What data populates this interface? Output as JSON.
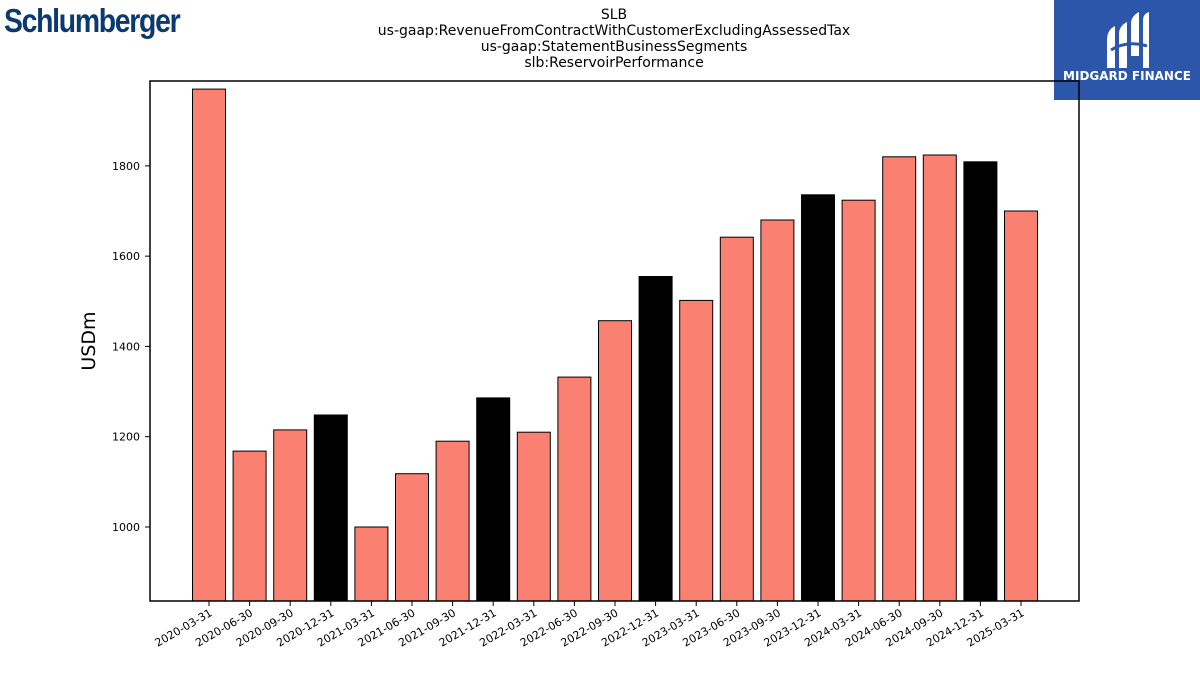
{
  "logos": {
    "company": "Schlumberger",
    "brand": "MIDGARD FINANCE"
  },
  "colors": {
    "quarter_bar": "#fa8072",
    "year_end_bar": "#000000",
    "brand_background": "#2b56a9",
    "company_logo": "#0b3a6e"
  },
  "chart_data": {
    "type": "bar",
    "title_lines": [
      "SLB",
      "us-gaap:RevenueFromContractWithCustomerExcludingAssessedTax",
      "us-gaap:StatementBusinessSegments",
      "slb:ReservoirPerformance"
    ],
    "xlabel": "",
    "ylabel": "USDm",
    "ylim": [
      836,
      1988
    ],
    "yticks": [
      1000,
      1200,
      1400,
      1600,
      1800
    ],
    "grid": false,
    "legend": false,
    "categories": [
      "2020-03-31",
      "2020-06-30",
      "2020-09-30",
      "2020-12-31",
      "2021-03-31",
      "2021-06-30",
      "2021-09-30",
      "2021-12-31",
      "2022-03-31",
      "2022-06-30",
      "2022-09-30",
      "2022-12-31",
      "2023-03-31",
      "2023-06-30",
      "2023-09-30",
      "2023-12-31",
      "2024-03-31",
      "2024-06-30",
      "2024-09-30",
      "2024-12-31",
      "2025-03-31"
    ],
    "values": [
      1970,
      1168,
      1215,
      1248,
      1000,
      1118,
      1190,
      1286,
      1210,
      1332,
      1457,
      1555,
      1502,
      1642,
      1680,
      1736,
      1724,
      1820,
      1824,
      1809,
      1700
    ],
    "year_end": [
      false,
      false,
      false,
      true,
      false,
      false,
      false,
      true,
      false,
      false,
      false,
      true,
      false,
      false,
      false,
      true,
      false,
      false,
      false,
      true,
      false
    ]
  }
}
